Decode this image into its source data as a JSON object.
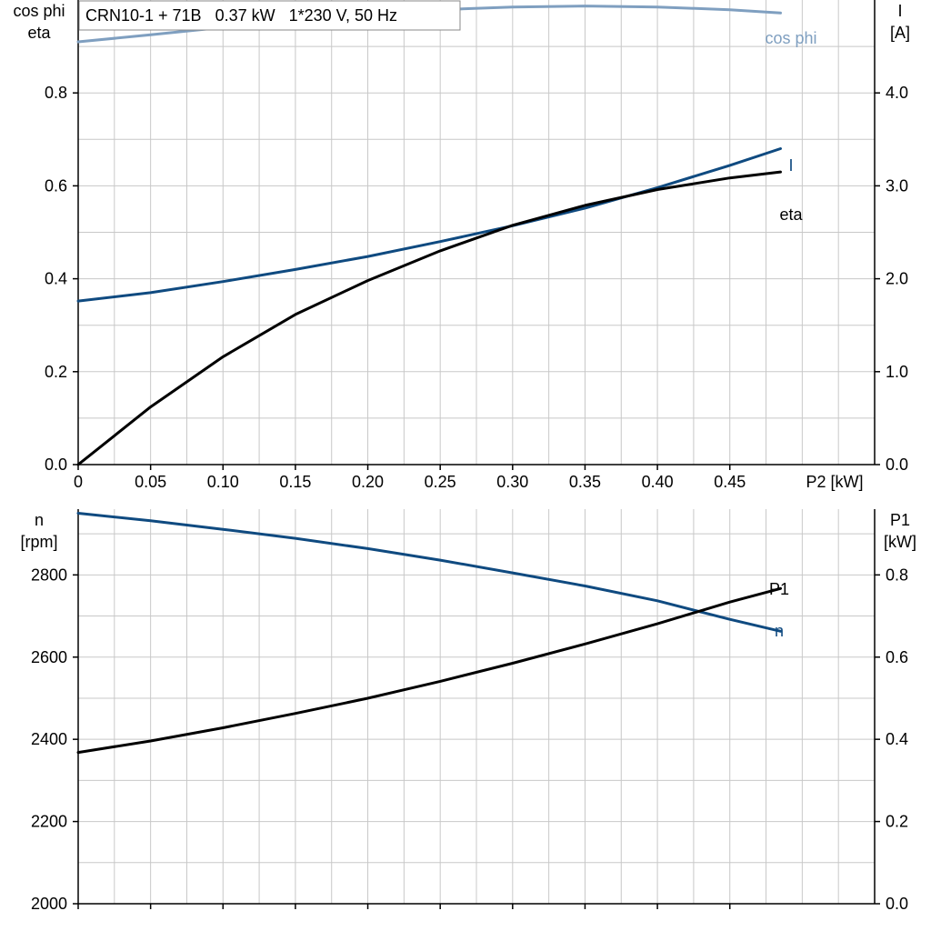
{
  "header": {
    "title": "CRN10-1 + 71B   0.37 kW   1*230 V, 50 Hz"
  },
  "colors": {
    "cos_phi": "#7f9fc0",
    "current": "#0f4a80",
    "eta": "#000000",
    "speed": "#0f4a80",
    "p1": "#000000",
    "grid": "#c8c8c8"
  },
  "chart_data": [
    {
      "type": "line",
      "name": "top-panel",
      "xlabel": "P2 [kW]",
      "x_ticks": [
        "0",
        "0.05",
        "0.10",
        "0.15",
        "0.20",
        "0.25",
        "0.30",
        "0.35",
        "0.40",
        "0.45"
      ],
      "x_tick_values": [
        0,
        0.05,
        0.1,
        0.15,
        0.2,
        0.25,
        0.3,
        0.35,
        0.4,
        0.45
      ],
      "xlim": [
        0,
        0.55
      ],
      "ylabel_left": [
        "cos phi",
        "eta"
      ],
      "ylim_left": [
        0,
        1.0
      ],
      "y_ticks_left": [
        "0.0",
        "0.2",
        "0.4",
        "0.6",
        "0.8"
      ],
      "y_tick_values_left": [
        0,
        0.2,
        0.4,
        0.6,
        0.8
      ],
      "ylabel_right": [
        "I",
        "[A]"
      ],
      "ylim_right": [
        0,
        5.0
      ],
      "y_ticks_right": [
        "0.0",
        "1.0",
        "2.0",
        "3.0",
        "4.0"
      ],
      "y_tick_values_right": [
        0,
        1,
        2,
        3,
        4
      ],
      "grid": true,
      "series": [
        {
          "name": "cos phi",
          "axis": "left",
          "x": [
            0,
            0.05,
            0.1,
            0.15,
            0.2,
            0.25,
            0.3,
            0.35,
            0.4,
            0.45,
            0.485
          ],
          "y": [
            0.91,
            0.925,
            0.941,
            0.956,
            0.969,
            0.979,
            0.985,
            0.987,
            0.985,
            0.979,
            0.972
          ]
        },
        {
          "name": "I",
          "axis": "right",
          "x": [
            0,
            0.05,
            0.1,
            0.15,
            0.2,
            0.25,
            0.3,
            0.35,
            0.4,
            0.45,
            0.485
          ],
          "y": [
            1.76,
            1.85,
            1.97,
            2.1,
            2.24,
            2.4,
            2.57,
            2.76,
            2.98,
            3.22,
            3.4
          ]
        },
        {
          "name": "eta",
          "axis": "left",
          "x": [
            0,
            0.05,
            0.1,
            0.15,
            0.2,
            0.25,
            0.3,
            0.35,
            0.4,
            0.45,
            0.485
          ],
          "y": [
            0.0,
            0.124,
            0.232,
            0.323,
            0.396,
            0.46,
            0.515,
            0.558,
            0.592,
            0.617,
            0.63
          ]
        }
      ]
    },
    {
      "type": "line",
      "name": "bottom-panel",
      "xlim": [
        0,
        0.55
      ],
      "ylabel_left": [
        "n",
        "[rpm]"
      ],
      "ylim_left": [
        2000,
        2960
      ],
      "y_ticks_left": [
        "2000",
        "2200",
        "2400",
        "2600",
        "2800"
      ],
      "y_tick_values_left": [
        2000,
        2200,
        2400,
        2600,
        2800
      ],
      "ylabel_right": [
        "P1",
        "[kW]"
      ],
      "ylim_right": [
        0,
        0.96
      ],
      "y_ticks_right": [
        "0.0",
        "0.2",
        "0.4",
        "0.6",
        "0.8"
      ],
      "y_tick_values_right": [
        0,
        0.2,
        0.4,
        0.6,
        0.8
      ],
      "grid": true,
      "series": [
        {
          "name": "n",
          "axis": "left",
          "x": [
            0,
            0.05,
            0.1,
            0.15,
            0.2,
            0.25,
            0.3,
            0.35,
            0.4,
            0.45,
            0.485
          ],
          "y": [
            2950,
            2932,
            2911,
            2889,
            2864,
            2836,
            2805,
            2773,
            2737,
            2692,
            2663
          ]
        },
        {
          "name": "P1",
          "axis": "right",
          "x": [
            0,
            0.05,
            0.1,
            0.15,
            0.2,
            0.25,
            0.3,
            0.35,
            0.4,
            0.45,
            0.485
          ],
          "y": [
            0.368,
            0.396,
            0.428,
            0.463,
            0.5,
            0.541,
            0.585,
            0.632,
            0.681,
            0.734,
            0.767
          ]
        }
      ]
    }
  ]
}
